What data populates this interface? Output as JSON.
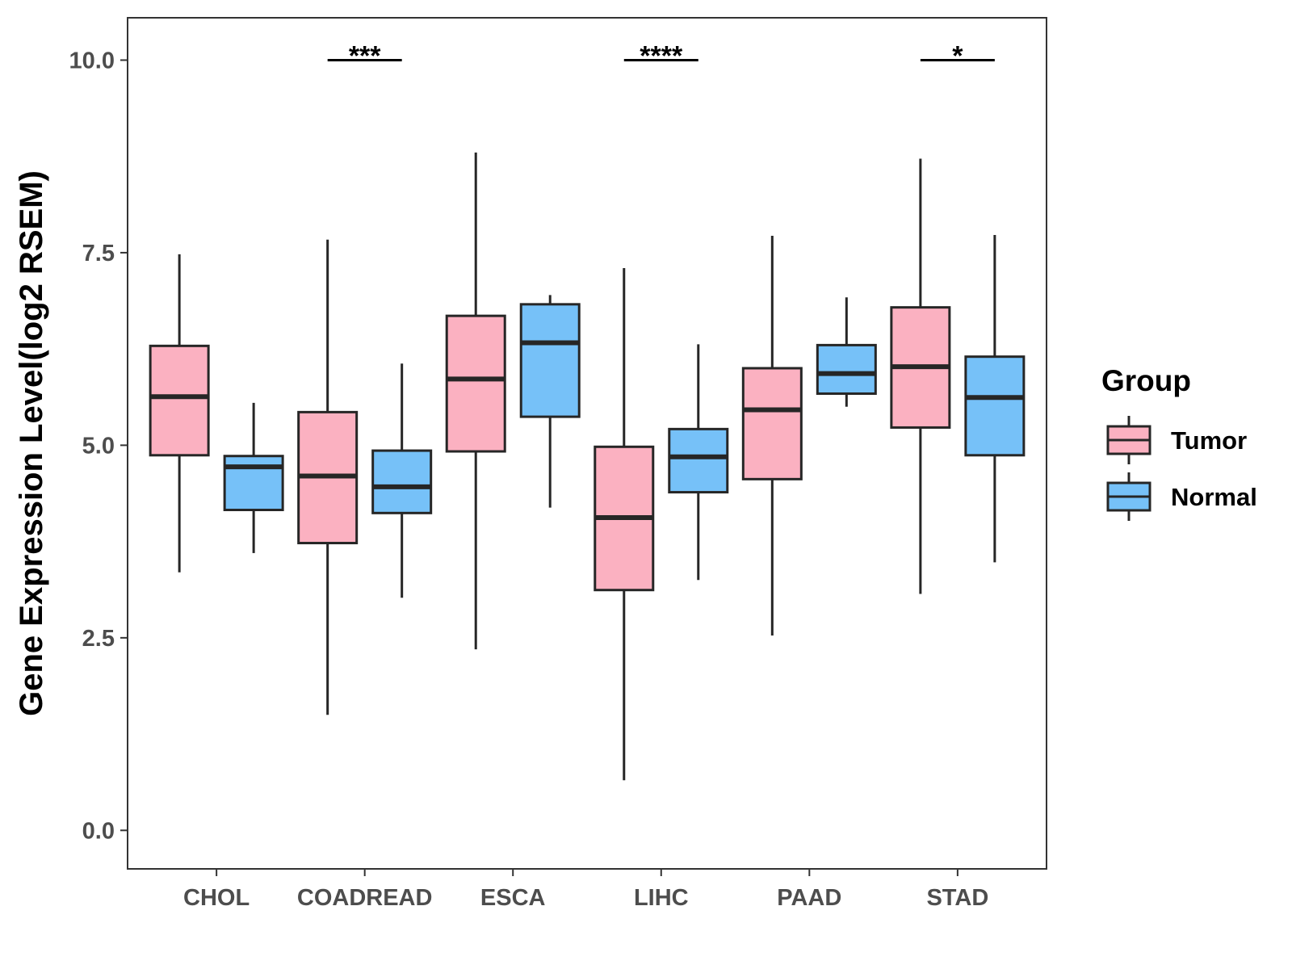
{
  "chart_data": {
    "type": "boxplot",
    "title": "",
    "xlabel": "",
    "ylabel": "Gene Expression Level(log2 RSEM)",
    "ylim": [
      -0.5,
      10.55
    ],
    "yticks": [
      0.0,
      2.5,
      5.0,
      7.5,
      10.0
    ],
    "ytick_labels": [
      "0.0",
      "2.5",
      "5.0",
      "7.5",
      "10.0"
    ],
    "categories": [
      "CHOL",
      "COADREAD",
      "ESCA",
      "LIHC",
      "PAAD",
      "STAD"
    ],
    "legend": {
      "title": "Group",
      "position": "right",
      "entries": [
        {
          "name": "Tumor",
          "color": "#fbb1c1"
        },
        {
          "name": "Normal",
          "color": "#76c1f8"
        }
      ]
    },
    "series": [
      {
        "name": "Tumor",
        "color": "#fbb1c1",
        "boxes": [
          {
            "min": 3.35,
            "q1": 4.87,
            "median": 5.63,
            "q3": 6.29,
            "max": 7.48
          },
          {
            "min": 1.5,
            "q1": 3.73,
            "median": 4.6,
            "q3": 5.43,
            "max": 7.67
          },
          {
            "min": 2.35,
            "q1": 4.92,
            "median": 5.86,
            "q3": 6.68,
            "max": 8.8
          },
          {
            "min": 0.65,
            "q1": 3.12,
            "median": 4.06,
            "q3": 4.98,
            "max": 7.3
          },
          {
            "min": 2.53,
            "q1": 4.56,
            "median": 5.46,
            "q3": 6.0,
            "max": 7.72
          },
          {
            "min": 3.07,
            "q1": 5.23,
            "median": 6.02,
            "q3": 6.79,
            "max": 8.72
          }
        ]
      },
      {
        "name": "Normal",
        "color": "#76c1f8",
        "boxes": [
          {
            "min": 3.6,
            "q1": 4.16,
            "median": 4.72,
            "q3": 4.86,
            "max": 5.55
          },
          {
            "min": 3.02,
            "q1": 4.12,
            "median": 4.46,
            "q3": 4.93,
            "max": 6.06
          },
          {
            "min": 4.19,
            "q1": 5.37,
            "median": 6.33,
            "q3": 6.83,
            "max": 6.95
          },
          {
            "min": 3.25,
            "q1": 4.39,
            "median": 4.85,
            "q3": 5.21,
            "max": 6.31
          },
          {
            "min": 5.5,
            "q1": 5.67,
            "median": 5.93,
            "q3": 6.3,
            "max": 6.92
          },
          {
            "min": 3.48,
            "q1": 4.87,
            "median": 5.62,
            "q3": 6.15,
            "max": 7.73
          }
        ]
      }
    ],
    "significance": [
      {
        "category": "COADREAD",
        "label": "***",
        "y": 10.0
      },
      {
        "category": "LIHC",
        "label": "****",
        "y": 10.0
      },
      {
        "category": "STAD",
        "label": "*",
        "y": 10.0
      }
    ]
  }
}
